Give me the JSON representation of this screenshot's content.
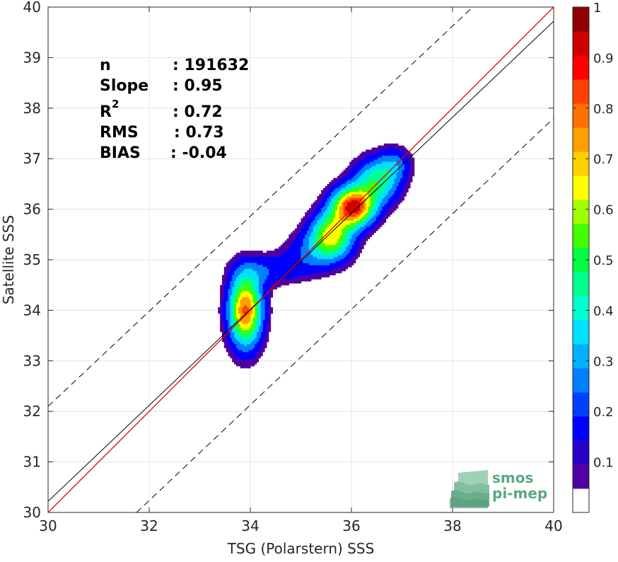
{
  "chart_data": {
    "type": "heatmap",
    "xlabel": "TSG (Polarstern) SSS",
    "ylabel": "Satellite SSS",
    "xlim": [
      30,
      40
    ],
    "ylim": [
      30,
      40
    ],
    "x_ticks": [
      "30",
      "32",
      "34",
      "36",
      "38",
      "40"
    ],
    "y_ticks": [
      "30",
      "31",
      "32",
      "33",
      "34",
      "35",
      "36",
      "37",
      "38",
      "39",
      "40"
    ],
    "x_tick_values": [
      30,
      32,
      34,
      36,
      38,
      40
    ],
    "y_tick_values": [
      30,
      31,
      32,
      33,
      34,
      35,
      36,
      37,
      38,
      39,
      40
    ],
    "grid": true,
    "stats": [
      {
        "label": "n",
        "value": ": 191632"
      },
      {
        "label": "Slope",
        "value": ": 0.95"
      },
      {
        "label": "R",
        "sup": "2",
        "value": ": 0.72"
      },
      {
        "label": "RMS",
        "value": ": 0.73"
      },
      {
        "label": "BIAS",
        "value": ": -0.04"
      }
    ],
    "lines": {
      "identity": {
        "x": [
          30,
          40
        ],
        "y": [
          30,
          40
        ],
        "color": "#e00000"
      },
      "regression": {
        "x": [
          30,
          40
        ],
        "y": [
          30.22,
          39.72
        ],
        "color": "#000000"
      },
      "upper_bound": {
        "x": [
          30,
          38.4
        ],
        "y": [
          32.1,
          40
        ],
        "color": "#000000",
        "style": "dashed"
      },
      "lower_bound": {
        "x": [
          31.75,
          40
        ],
        "y": [
          30,
          37.8
        ],
        "color": "#000000",
        "style": "dashed"
      }
    },
    "density_levels": [
      0.05,
      0.1,
      0.2,
      0.3,
      0.4,
      0.5,
      0.6,
      0.7,
      0.8,
      0.9
    ],
    "density_blobs": [
      {
        "cx": 33.9,
        "cy": 34.0,
        "sx": 0.22,
        "sy": 0.48,
        "amp": 0.82
      },
      {
        "cx": 34.2,
        "cy": 34.75,
        "sx": 0.35,
        "sy": 0.2,
        "amp": 0.12
      },
      {
        "cx": 34.8,
        "cy": 34.85,
        "sx": 0.45,
        "sy": 0.2,
        "amp": 0.12
      },
      {
        "cx": 35.3,
        "cy": 35.2,
        "sx": 0.4,
        "sy": 0.25,
        "amp": 0.18
      },
      {
        "cx": 35.6,
        "cy": 35.5,
        "sx": 0.28,
        "sy": 0.3,
        "amp": 0.6
      },
      {
        "cx": 36.03,
        "cy": 36.05,
        "sx": 0.28,
        "sy": 0.26,
        "amp": 0.92
      },
      {
        "cx": 36.5,
        "cy": 36.55,
        "sx": 0.3,
        "sy": 0.3,
        "amp": 0.45
      },
      {
        "cx": 36.85,
        "cy": 36.9,
        "sx": 0.22,
        "sy": 0.22,
        "amp": 0.2
      }
    ],
    "colorbar": {
      "ticks": [
        "0.1",
        "0.2",
        "0.3",
        "0.4",
        "0.5",
        "0.6",
        "0.7",
        "0.8",
        "0.9",
        "1"
      ],
      "tick_values": [
        0.1,
        0.2,
        0.3,
        0.4,
        0.5,
        0.6,
        0.7,
        0.8,
        0.9,
        1.0
      ],
      "min": 0,
      "max": 1,
      "colors": [
        "#ffffff",
        "#5000a0",
        "#2a00c8",
        "#0000ff",
        "#0040ff",
        "#0080ff",
        "#00b0ff",
        "#00e0ff",
        "#00ffd0",
        "#00ff90",
        "#00ff40",
        "#40ff00",
        "#a0ff00",
        "#ffff00",
        "#ffd000",
        "#ffa000",
        "#ff7000",
        "#ff4000",
        "#ff0000",
        "#d00000",
        "#900000"
      ]
    },
    "logo": {
      "line1": "smos",
      "line2": "pi-mep",
      "color": "#5aa882"
    }
  }
}
